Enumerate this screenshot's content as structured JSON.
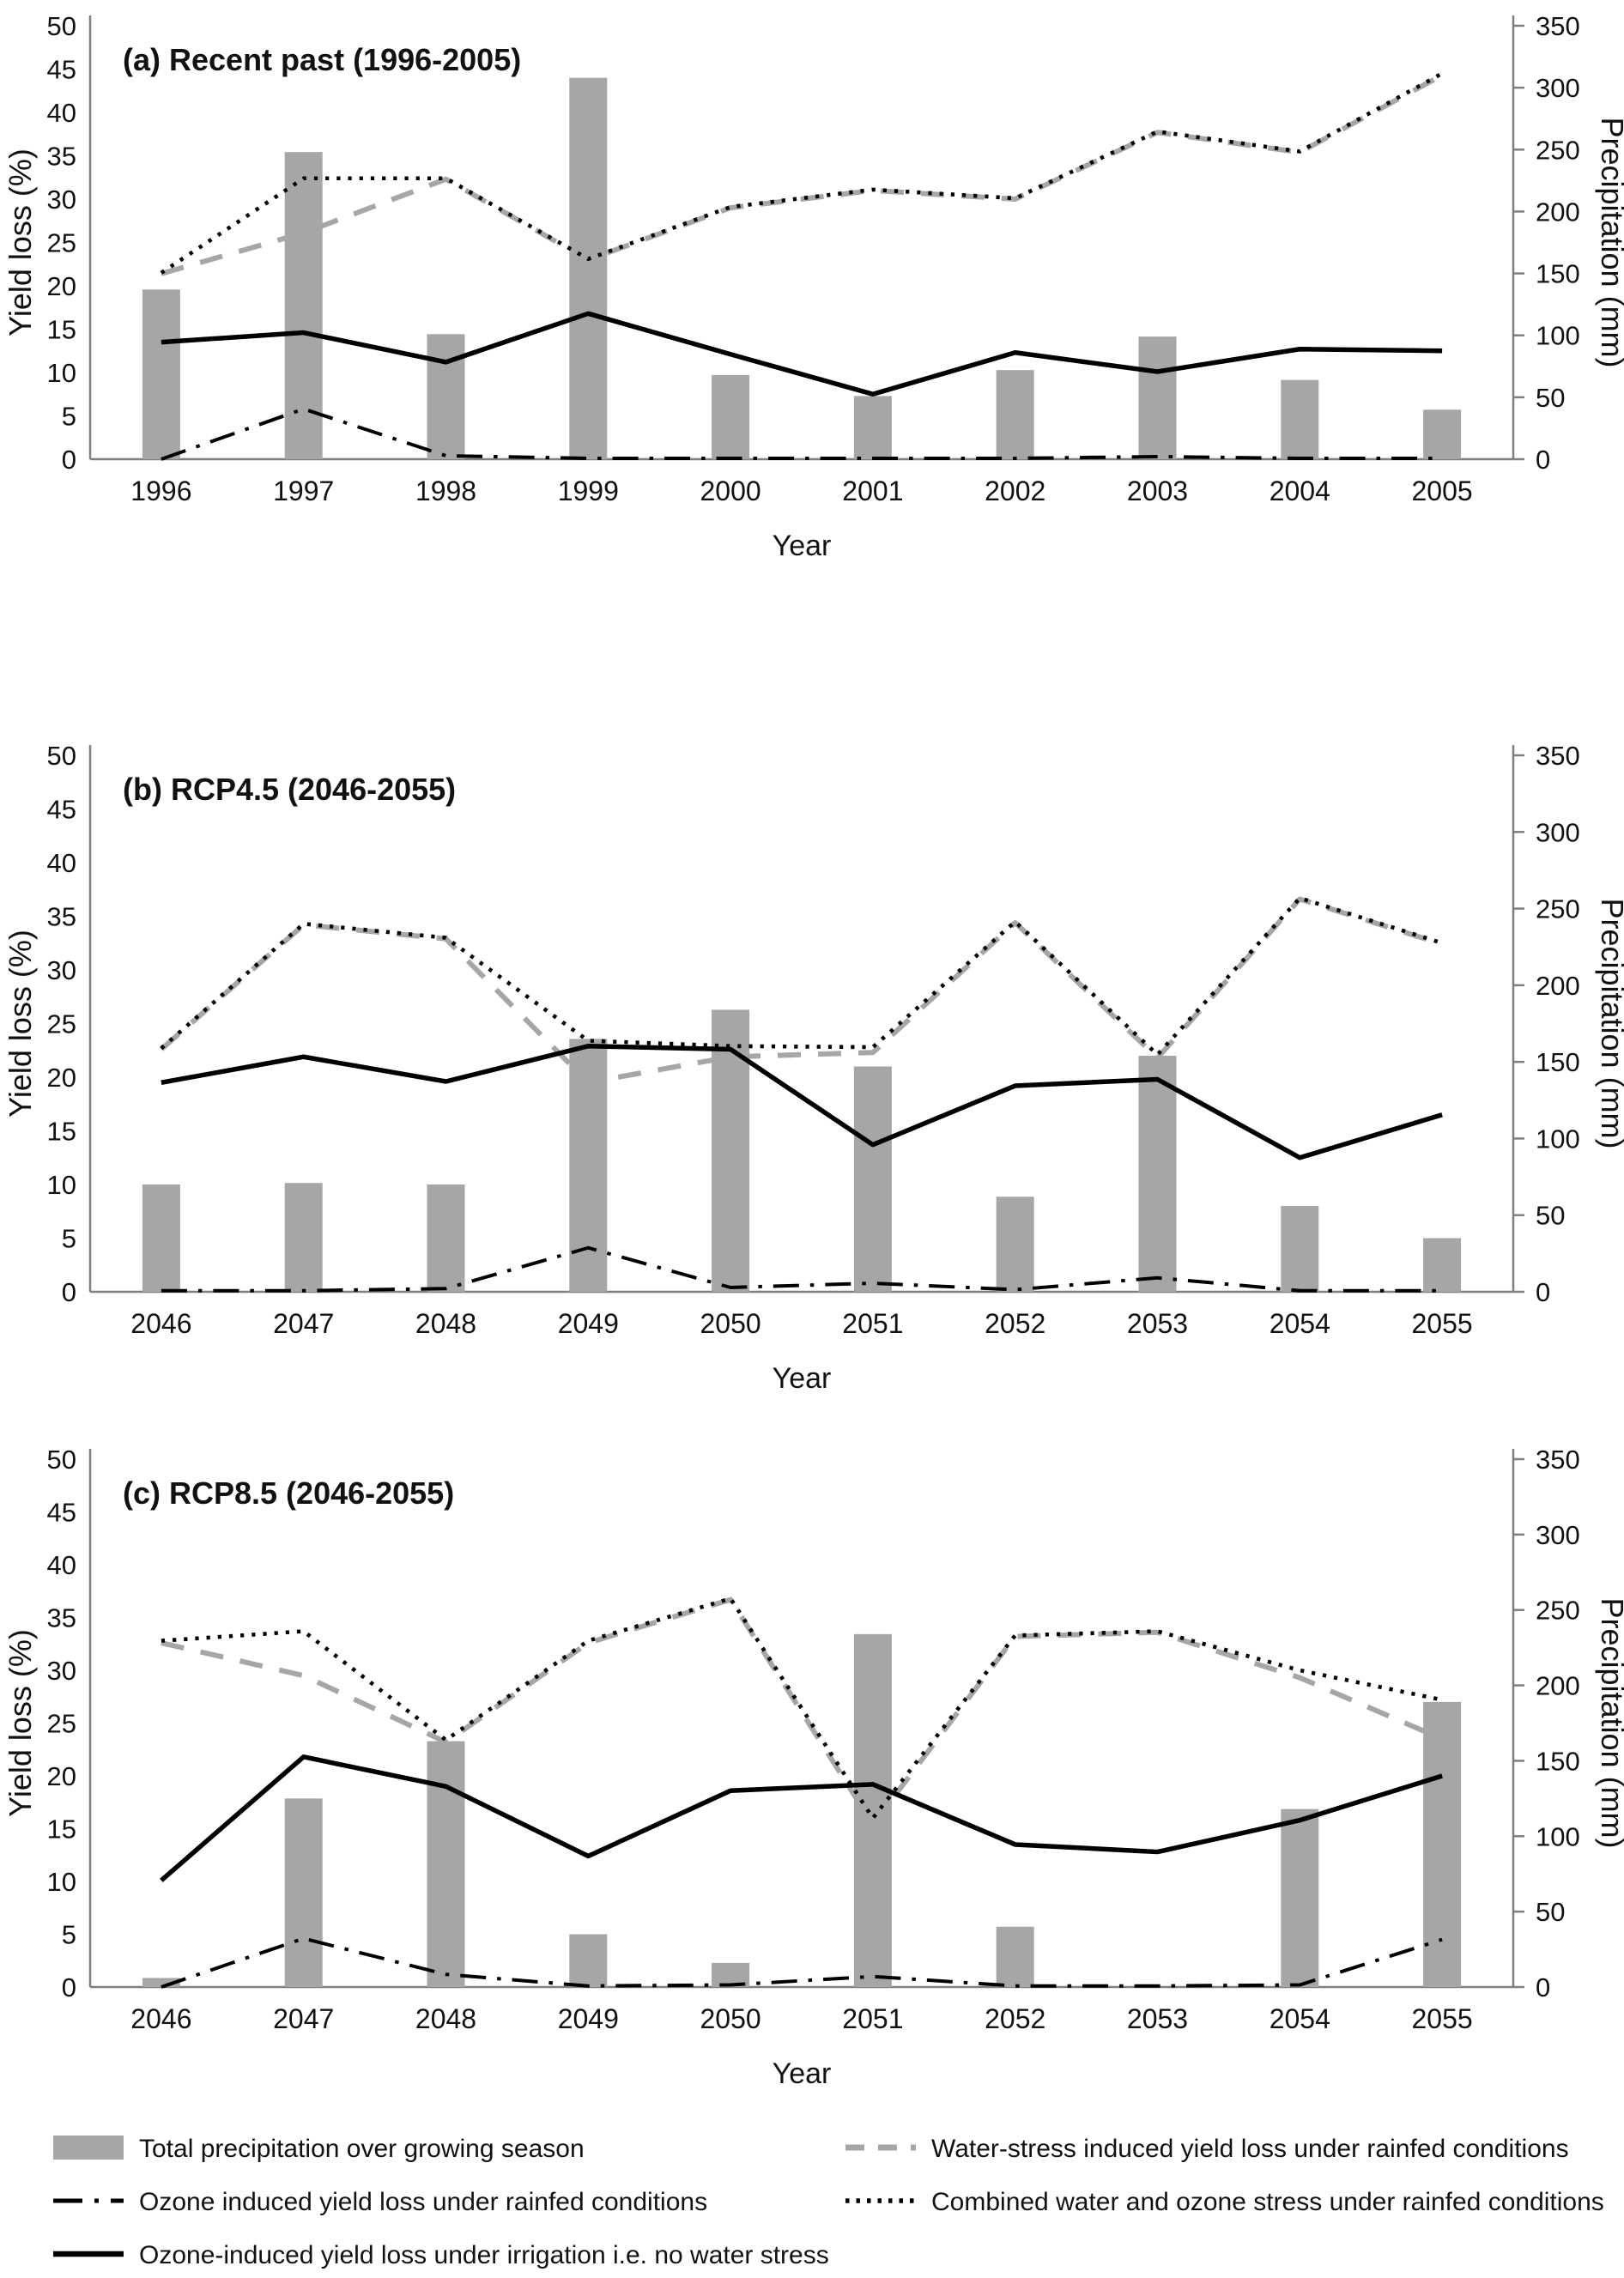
{
  "figure": {
    "background": "#ffffff",
    "x_label": "Year",
    "y_left_label": "Yield loss (%)",
    "y_right_label": "Precipitation (mm)"
  },
  "colors": {
    "bar": "#a6a6a6",
    "dashed_gray": "#a6a6a6",
    "line_black": "#000000",
    "axis": "#7f7f7f",
    "text": "#111111"
  },
  "axes": {
    "y_left_ticks": [
      0,
      5,
      10,
      15,
      20,
      25,
      30,
      35,
      40,
      45,
      50
    ],
    "y_right_ticks": [
      0,
      50,
      100,
      150,
      200,
      250,
      300,
      350
    ],
    "y_left_range": [
      0,
      50
    ],
    "y_right_range": [
      0,
      350
    ],
    "grid": "off",
    "legend_position": "bottom"
  },
  "chart_data": [
    {
      "type": "bar",
      "title": "(a) Recent past (1996-2005)",
      "xlabel": "Year",
      "ylabel_left": "Yield loss (%)",
      "ylabel_right": "Precipitation (mm)",
      "ylim_left": [
        0,
        50
      ],
      "ylim_right": [
        0,
        350
      ],
      "categories": [
        "1996",
        "1997",
        "1998",
        "1999",
        "2000",
        "2001",
        "2002",
        "2003",
        "2004",
        "2005"
      ],
      "series": [
        {
          "name": "Total precipitation over growing season",
          "style": "bar",
          "axis": "right",
          "unit": "mm",
          "values": [
            137,
            248,
            101,
            308,
            68,
            51,
            72,
            99,
            64,
            40
          ]
        },
        {
          "name": "Water-stress induced yield loss under rainfed conditions",
          "style": "dashed-gray",
          "axis": "left",
          "unit": "%",
          "values": [
            21.4,
            26.1,
            32.3,
            23.0,
            29.0,
            31.0,
            30.0,
            37.7,
            35.4,
            44.3
          ]
        },
        {
          "name": "Combined water and ozone stress under rainfed conditions",
          "style": "dotted-black",
          "axis": "left",
          "unit": "%",
          "values": [
            21.5,
            32.4,
            32.4,
            23.1,
            29.1,
            31.1,
            30.1,
            37.8,
            35.5,
            44.5
          ]
        },
        {
          "name": "Ozone induced yield loss under rainfed conditions",
          "style": "dashdot-black",
          "axis": "left",
          "unit": "%",
          "values": [
            0.0,
            5.8,
            0.4,
            0.1,
            0.1,
            0.1,
            0.1,
            0.3,
            0.1,
            0.1
          ]
        },
        {
          "name": "Ozone-induced yield loss under irrigation i.e. no water stress",
          "style": "solid-black",
          "axis": "left",
          "unit": "%",
          "values": [
            13.5,
            14.6,
            11.2,
            16.8,
            12.1,
            7.5,
            12.3,
            10.1,
            12.7,
            12.5
          ]
        }
      ]
    },
    {
      "type": "bar",
      "title": "(b) RCP4.5 (2046-2055)",
      "xlabel": "Year",
      "ylabel_left": "Yield loss (%)",
      "ylabel_right": "Precipitation (mm)",
      "ylim_left": [
        0,
        50
      ],
      "ylim_right": [
        0,
        350
      ],
      "categories": [
        "2046",
        "2047",
        "2048",
        "2049",
        "2050",
        "2051",
        "2052",
        "2053",
        "2054",
        "2055"
      ],
      "series": [
        {
          "name": "Total precipitation over growing season",
          "style": "bar",
          "axis": "right",
          "unit": "mm",
          "values": [
            70,
            71,
            70,
            165,
            184,
            147,
            62,
            154,
            56,
            35
          ]
        },
        {
          "name": "Water-stress induced yield loss under rainfed conditions",
          "style": "dashed-gray",
          "axis": "left",
          "unit": "%",
          "values": [
            22.6,
            34.2,
            32.9,
            19.5,
            21.9,
            22.3,
            34.4,
            21.8,
            36.6,
            32.4
          ]
        },
        {
          "name": "Combined water and ozone stress under rainfed conditions",
          "style": "dotted-black",
          "axis": "left",
          "unit": "%",
          "values": [
            22.7,
            34.3,
            33.0,
            23.4,
            22.9,
            22.8,
            34.5,
            22.1,
            36.7,
            32.5
          ]
        },
        {
          "name": "Ozone induced yield loss under rainfed conditions",
          "style": "dashdot-black",
          "axis": "left",
          "unit": "%",
          "values": [
            0.1,
            0.1,
            0.3,
            4.1,
            0.4,
            0.8,
            0.2,
            1.3,
            0.1,
            0.1
          ]
        },
        {
          "name": "Ozone-induced yield loss under irrigation i.e. no water stress",
          "style": "solid-black",
          "axis": "left",
          "unit": "%",
          "values": [
            19.5,
            21.9,
            19.6,
            22.9,
            22.6,
            13.7,
            19.2,
            19.8,
            12.5,
            16.5
          ]
        }
      ]
    },
    {
      "type": "bar",
      "title": "(c) RCP8.5 (2046-2055)",
      "xlabel": "Year",
      "ylabel_left": "Yield loss (%)",
      "ylabel_right": "Precipitation (mm)",
      "ylim_left": [
        0,
        50
      ],
      "ylim_right": [
        0,
        350
      ],
      "categories": [
        "2046",
        "2047",
        "2048",
        "2049",
        "2050",
        "2051",
        "2052",
        "2053",
        "2054",
        "2055"
      ],
      "series": [
        {
          "name": "Total precipitation over growing season",
          "style": "bar",
          "axis": "right",
          "unit": "mm",
          "values": [
            6,
            125,
            163,
            35,
            16,
            234,
            40,
            0,
            118,
            189
          ]
        },
        {
          "name": "Water-stress induced yield loss under rainfed conditions",
          "style": "dashed-gray",
          "axis": "left",
          "unit": "%",
          "values": [
            32.6,
            29.5,
            23.2,
            32.6,
            36.7,
            15.4,
            33.2,
            33.6,
            29.3,
            23.5
          ]
        },
        {
          "name": "Combined water and ozone stress under rainfed conditions",
          "style": "dotted-black",
          "axis": "left",
          "unit": "%",
          "values": [
            32.8,
            33.7,
            23.4,
            32.8,
            36.8,
            16.0,
            33.3,
            33.7,
            30.0,
            27.2
          ]
        },
        {
          "name": "Ozone induced yield loss under rainfed conditions",
          "style": "dashdot-black",
          "axis": "left",
          "unit": "%",
          "values": [
            0.0,
            4.6,
            1.2,
            0.1,
            0.2,
            1.0,
            0.1,
            0.1,
            0.2,
            4.5
          ]
        },
        {
          "name": "Ozone-induced yield loss under irrigation i.e. no water stress",
          "style": "solid-black",
          "axis": "left",
          "unit": "%",
          "values": [
            10.1,
            21.8,
            19.0,
            12.4,
            18.6,
            19.2,
            13.5,
            12.8,
            15.8,
            20.0
          ]
        }
      ]
    }
  ],
  "legend": {
    "items": [
      {
        "label": "Total precipitation over growing season",
        "style": "bar",
        "col": 0,
        "row": 0
      },
      {
        "label": "Water-stress induced yield loss under rainfed conditions",
        "style": "dashed-gray",
        "col": 1,
        "row": 0
      },
      {
        "label": "Ozone induced yield loss under rainfed conditions",
        "style": "dashdot-black",
        "col": 0,
        "row": 1
      },
      {
        "label": "Combined water and ozone stress under rainfed conditions",
        "style": "dotted-black",
        "col": 1,
        "row": 1
      },
      {
        "label": "Ozone-induced yield loss under irrigation i.e. no water stress",
        "style": "solid-black",
        "col": 0,
        "row": 2
      }
    ]
  }
}
